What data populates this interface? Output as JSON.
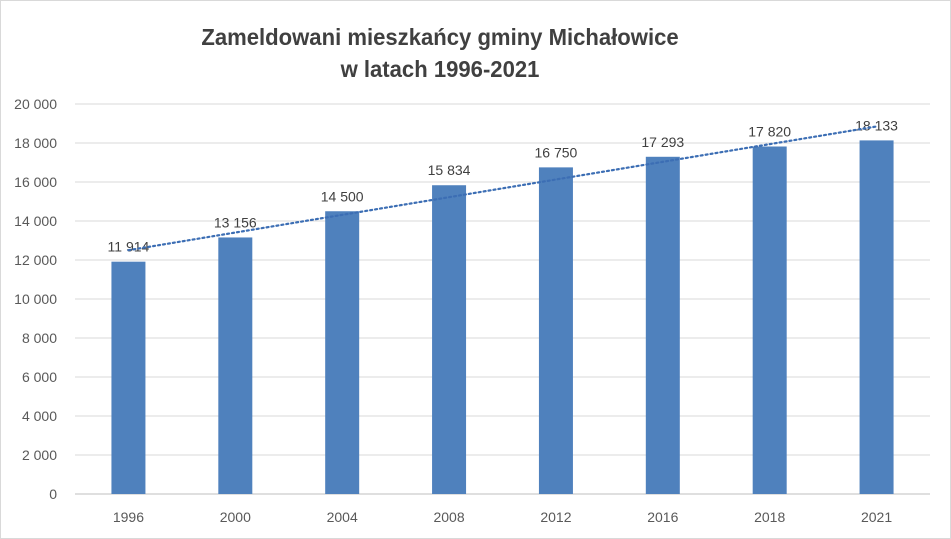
{
  "chart_data": {
    "type": "bar",
    "title_line1": "Zameldowani mieszkańcy gminy Michałowice",
    "title_line2": "w latach 1996-2021",
    "categories": [
      "1996",
      "2000",
      "2004",
      "2008",
      "2012",
      "2016",
      "2018",
      "2021"
    ],
    "values": [
      11914,
      13156,
      14500,
      15834,
      16750,
      17293,
      17820,
      18133
    ],
    "value_labels": [
      "11 914",
      "13 156",
      "14 500",
      "15 834",
      "16 750",
      "17 293",
      "17 820",
      "18 133"
    ],
    "y_ticks": [
      "0",
      "2 000",
      "4 000",
      "6 000",
      "8 000",
      "10 000",
      "12 000",
      "14 000",
      "16 000",
      "18 000",
      "20 000"
    ],
    "ylim": [
      0,
      20000
    ],
    "trendline": {
      "type": "linear",
      "style": "dotted"
    },
    "grid": true,
    "bar_color": "#4f81bd",
    "trend_color": "#3c6eb4",
    "grid_color": "#d9d9d9"
  }
}
